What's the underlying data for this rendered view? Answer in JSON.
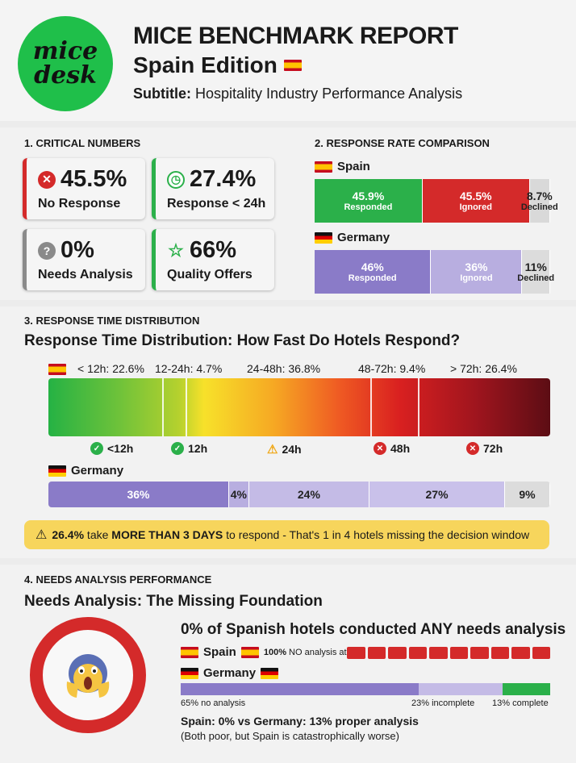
{
  "header": {
    "logo_line1": "mice",
    "logo_line2": "desk",
    "title": "MICE BENCHMARK REPORT",
    "edition": "Spain Edition",
    "subtitle_key": "Subtitle:",
    "subtitle_value": "Hospitality Industry Performance Analysis"
  },
  "section1": {
    "label": "1. CRITICAL NUMBERS",
    "cards": [
      {
        "value": "45.5%",
        "label": "No Response",
        "icon": "x-circle-icon",
        "color": "#d42a2a"
      },
      {
        "value": "27.4%",
        "label": "Response < 24h",
        "icon": "clock-icon",
        "color": "#2bb04a"
      },
      {
        "value": "0%",
        "label": "Needs Analysis",
        "icon": "question-icon",
        "color": "#8a8a8a"
      },
      {
        "value": "66%",
        "label": "Quality Offers",
        "icon": "star-icon",
        "color": "#2bb04a"
      }
    ]
  },
  "section2": {
    "label": "2. RESPONSE RATE COMPARISON",
    "spain_label": "Spain",
    "germany_label": "Germany"
  },
  "section3": {
    "label": "3. RESPONSE TIME DISTRIBUTION",
    "heading": "Response Time Distribution: How Fast Do Hotels Respond?",
    "spain_bins": [
      "< 12h: 22.6%",
      "12-24h: 4.7%",
      "24-48h: 36.8%",
      "48-72h: 9.4%",
      "> 72h: 26.4%"
    ],
    "markers": [
      "<12h",
      "12h",
      "24h",
      "48h",
      "72h"
    ],
    "germany_label": "Germany",
    "warning_value": "26.4%",
    "warning_mid": " take ",
    "warning_bold": "MORE THAN 3 DAYS",
    "warning_rest": " to respond - That's 1 in 4 hotels missing the decision window"
  },
  "section4": {
    "label": "4. NEEDS ANALYSIS PERFORMANCE",
    "heading": "Needs Analysis: The Missing Foundation",
    "headline": "0% of Spanish hotels conducted ANY needs analysis",
    "spain_label": "Spain",
    "spain_note_bold": "100%",
    "spain_note": " NO analysis at all",
    "germany_label": "Germany",
    "germany_bins": [
      "65% no analysis",
      "23% incomplete",
      "13% complete"
    ],
    "compare_line": "Spain: 0% vs Germany: 13% proper analysis",
    "compare_note": "(Both poor, but Spain is catastrophically worse)"
  },
  "chart_data": [
    {
      "type": "bar",
      "title": "RESPONSE RATE COMPARISON",
      "categories": [
        "Spain",
        "Germany"
      ],
      "series": [
        {
          "name": "Responded",
          "values": [
            45.9,
            46
          ],
          "labels": [
            "45.9%",
            "46%"
          ]
        },
        {
          "name": "Ignored",
          "values": [
            45.5,
            36
          ],
          "labels": [
            "45.5%",
            "36%"
          ]
        },
        {
          "name": "Declined",
          "values": [
            8.7,
            11
          ],
          "labels": [
            "8.7%",
            "11%"
          ]
        }
      ],
      "colors": {
        "spain": [
          "#2bb04a",
          "#d42a2a",
          "#d9d9d9"
        ],
        "germany": [
          "#8a7bc8",
          "#b8aee0",
          "#dcdcdc"
        ]
      }
    },
    {
      "type": "bar",
      "title": "Response Time Distribution: How Fast Do Hotels Respond?",
      "categories": [
        "< 12h",
        "12-24h",
        "24-48h",
        "48-72h",
        "> 72h"
      ],
      "series": [
        {
          "name": "Spain",
          "values": [
            22.6,
            4.7,
            36.8,
            9.4,
            26.4
          ]
        },
        {
          "name": "Germany",
          "values": [
            36,
            4,
            24,
            27,
            9
          ],
          "labels": [
            "36%",
            "4%",
            "24%",
            "27%",
            "9%"
          ]
        }
      ]
    },
    {
      "type": "bar",
      "title": "Needs Analysis: The Missing Foundation",
      "categories": [
        "no analysis",
        "incomplete",
        "complete"
      ],
      "series": [
        {
          "name": "Spain",
          "values": [
            100,
            0,
            0
          ]
        },
        {
          "name": "Germany",
          "values": [
            65,
            23,
            13
          ]
        }
      ]
    }
  ]
}
